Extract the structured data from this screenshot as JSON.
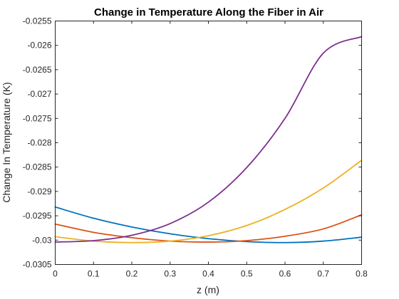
{
  "chart_data": {
    "type": "line",
    "title": "Change in Temperature Along the Fiber in Air",
    "xlabel": "z (m)",
    "ylabel": "Change In Temperature (K)",
    "xlim": [
      0,
      0.8
    ],
    "ylim": [
      -0.0305,
      -0.0255
    ],
    "xticks": [
      "0",
      "0.1",
      "0.2",
      "0.3",
      "0.4",
      "0.5",
      "0.6",
      "0.7",
      "0.8"
    ],
    "yticks": [
      "-0.0255",
      "-0.026",
      "-0.0265",
      "-0.027",
      "-0.0275",
      "-0.028",
      "-0.0285",
      "-0.029",
      "-0.0295",
      "-0.03",
      "-0.0305"
    ],
    "grid": false,
    "x": [
      0,
      0.1,
      0.2,
      0.3,
      0.4,
      0.5,
      0.6,
      0.7,
      0.8
    ],
    "series": [
      {
        "color": "#0072BD",
        "values": [
          -0.02932,
          -0.02955,
          -0.02973,
          -0.02987,
          -0.02997,
          -0.03003,
          -0.03005,
          -0.03002,
          -0.02994
        ]
      },
      {
        "color": "#D95319",
        "values": [
          -0.02967,
          -0.02984,
          -0.02995,
          -0.03002,
          -0.03004,
          -0.03001,
          -0.02992,
          -0.02977,
          -0.02948
        ]
      },
      {
        "color": "#EDB120",
        "values": [
          -0.02993,
          -0.03002,
          -0.03005,
          -0.03002,
          -0.02991,
          -0.0297,
          -0.02937,
          -0.02893,
          -0.02836
        ]
      },
      {
        "color": "#7E2F8E",
        "values": [
          -0.03004,
          -0.03001,
          -0.0299,
          -0.02966,
          -0.02922,
          -0.02851,
          -0.0275,
          -0.02616,
          -0.02582
        ]
      }
    ]
  }
}
